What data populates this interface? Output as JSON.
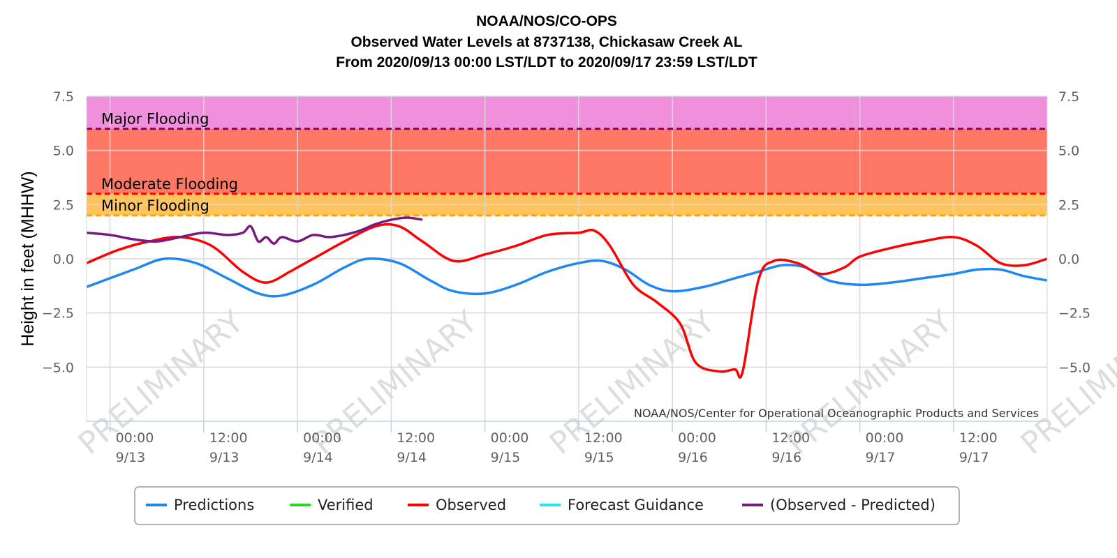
{
  "colors": {
    "major_band": "#f090dc",
    "moderate_band": "#ff7866",
    "minor_band": "#ffc45c",
    "major_line": "#800080",
    "moderate_line": "#ff0000",
    "minor_line": "#ffa500",
    "predictions": "#1e88f0",
    "verified": "#22dd22",
    "observed": "#ff0000",
    "forecast_guidance": "#22e8f0",
    "observed_minus_predicted": "#7a1a80",
    "grid": "#d8d8d8",
    "axis": "#c0d0e0"
  },
  "chart_data": {
    "type": "line",
    "title": [
      "NOAA/NOS/CO-OPS",
      "Observed Water Levels at 8737138, Chickasaw Creek AL",
      "From 2020/09/13 00:00 LST/LDT to 2020/09/17 23:59 LST/LDT"
    ],
    "ylabel": "Height in feet (MHHW)",
    "ylim": [
      -7.5,
      7.5
    ],
    "y_ticks": [
      "7.5",
      "5.0",
      "2.5",
      "0.0",
      "−2.5",
      "−5.0"
    ],
    "y_tick_values": [
      7.5,
      5.0,
      2.5,
      0.0,
      -2.5,
      -5.0
    ],
    "xlim": [
      "2020-09-12 21:00",
      "2020-09-17 23:59"
    ],
    "x_ticks": [
      {
        "t": "2020-09-13 00:00",
        "time": "00:00",
        "date": "9/13"
      },
      {
        "t": "2020-09-13 12:00",
        "time": "12:00",
        "date": "9/13"
      },
      {
        "t": "2020-09-14 00:00",
        "time": "00:00",
        "date": "9/14"
      },
      {
        "t": "2020-09-14 12:00",
        "time": "12:00",
        "date": "9/14"
      },
      {
        "t": "2020-09-15 00:00",
        "time": "00:00",
        "date": "9/15"
      },
      {
        "t": "2020-09-15 12:00",
        "time": "12:00",
        "date": "9/15"
      },
      {
        "t": "2020-09-16 00:00",
        "time": "00:00",
        "date": "9/16"
      },
      {
        "t": "2020-09-16 12:00",
        "time": "12:00",
        "date": "9/16"
      },
      {
        "t": "2020-09-17 00:00",
        "time": "00:00",
        "date": "9/17"
      },
      {
        "t": "2020-09-17 12:00",
        "time": "12:00",
        "date": "9/17"
      }
    ],
    "grid": true,
    "legend_position": "bottom",
    "flood_levels": [
      {
        "label": "Major Flooding",
        "value": 6.0,
        "band": [
          6.0,
          7.5
        ]
      },
      {
        "label": "Moderate Flooding",
        "value": 3.0,
        "band": [
          3.0,
          6.0
        ]
      },
      {
        "label": "Minor Flooding",
        "value": 2.0,
        "band": [
          2.0,
          3.0
        ]
      }
    ],
    "series": [
      {
        "name": "Predictions",
        "x": [
          "2020-09-12 21:00",
          "2020-09-13 03:00",
          "2020-09-13 07:00",
          "2020-09-13 11:00",
          "2020-09-13 15:00",
          "2020-09-13 19:00",
          "2020-09-13 22:00",
          "2020-09-14 02:00",
          "2020-09-14 06:00",
          "2020-09-14 09:00",
          "2020-09-14 13:00",
          "2020-09-14 17:00",
          "2020-09-14 20:00",
          "2020-09-15 00:00",
          "2020-09-15 04:00",
          "2020-09-15 08:00",
          "2020-09-15 12:00",
          "2020-09-15 15:00",
          "2020-09-15 18:00",
          "2020-09-15 21:00",
          "2020-09-16 00:00",
          "2020-09-16 04:00",
          "2020-09-16 08:00",
          "2020-09-16 11:00",
          "2020-09-16 14:00",
          "2020-09-16 17:00",
          "2020-09-16 20:00",
          "2020-09-17 00:00",
          "2020-09-17 04:00",
          "2020-09-17 08:00",
          "2020-09-17 12:00",
          "2020-09-17 15:00",
          "2020-09-17 18:00",
          "2020-09-17 21:00",
          "2020-09-17 23:59"
        ],
        "y": [
          -1.3,
          -0.5,
          0.0,
          -0.2,
          -0.9,
          -1.6,
          -1.7,
          -1.2,
          -0.4,
          0.0,
          -0.2,
          -1.0,
          -1.5,
          -1.6,
          -1.2,
          -0.6,
          -0.2,
          -0.1,
          -0.5,
          -1.2,
          -1.5,
          -1.3,
          -0.9,
          -0.6,
          -0.3,
          -0.4,
          -1.0,
          -1.2,
          -1.1,
          -0.9,
          -0.7,
          -0.5,
          -0.5,
          -0.8,
          -1.0
        ]
      },
      {
        "name": "Verified",
        "x": [],
        "y": []
      },
      {
        "name": "Observed",
        "x": [
          "2020-09-12 21:00",
          "2020-09-13 01:00",
          "2020-09-13 05:00",
          "2020-09-13 09:00",
          "2020-09-13 13:00",
          "2020-09-13 17:00",
          "2020-09-13 20:00",
          "2020-09-13 23:00",
          "2020-09-14 00:00",
          "2020-09-14 03:00",
          "2020-09-14 06:00",
          "2020-09-14 10:00",
          "2020-09-14 13:00",
          "2020-09-14 16:00",
          "2020-09-14 20:00",
          "2020-09-15 00:00",
          "2020-09-15 04:00",
          "2020-09-15 08:00",
          "2020-09-15 12:00",
          "2020-09-15 14:00",
          "2020-09-15 16:00",
          "2020-09-15 19:00",
          "2020-09-15 22:00",
          "2020-09-16 01:00",
          "2020-09-16 03:00",
          "2020-09-16 06:00",
          "2020-09-16 08:00",
          "2020-09-16 09:00",
          "2020-09-16 11:00",
          "2020-09-16 13:00",
          "2020-09-16 16:00",
          "2020-09-16 19:00",
          "2020-09-16 22:00",
          "2020-09-17 00:00",
          "2020-09-17 04:00",
          "2020-09-17 08:00",
          "2020-09-17 12:00",
          "2020-09-17 15:00",
          "2020-09-17 18:00",
          "2020-09-17 21:00",
          "2020-09-17 23:59"
        ],
        "y": [
          -0.2,
          0.4,
          0.8,
          1.0,
          0.6,
          -0.6,
          -1.1,
          -0.6,
          -0.4,
          0.2,
          0.8,
          1.5,
          1.5,
          0.8,
          -0.1,
          0.2,
          0.6,
          1.1,
          1.2,
          1.3,
          0.6,
          -1.2,
          -2.0,
          -3.0,
          -4.8,
          -5.2,
          -5.1,
          -5.2,
          -1.0,
          -0.1,
          -0.2,
          -0.7,
          -0.4,
          0.1,
          0.5,
          0.8,
          1.0,
          0.6,
          -0.2,
          -0.3,
          0.0
        ]
      },
      {
        "name": "Forecast Guidance",
        "x": [],
        "y": []
      },
      {
        "name": "(Observed - Predicted)",
        "x": [
          "2020-09-12 21:00",
          "2020-09-13 00:00",
          "2020-09-13 03:00",
          "2020-09-13 06:00",
          "2020-09-13 09:00",
          "2020-09-13 12:00",
          "2020-09-13 15:00",
          "2020-09-13 17:00",
          "2020-09-13 18:00",
          "2020-09-13 19:00",
          "2020-09-13 20:00",
          "2020-09-13 21:00",
          "2020-09-13 22:00",
          "2020-09-14 00:00",
          "2020-09-14 02:00",
          "2020-09-14 04:00",
          "2020-09-14 06:00",
          "2020-09-14 08:00",
          "2020-09-14 10:00",
          "2020-09-14 12:00",
          "2020-09-14 14:00",
          "2020-09-14 16:00"
        ],
        "y": [
          1.2,
          1.1,
          0.9,
          0.8,
          1.0,
          1.2,
          1.1,
          1.2,
          1.5,
          0.8,
          1.0,
          0.7,
          1.0,
          0.8,
          1.1,
          1.0,
          1.1,
          1.3,
          1.6,
          1.8,
          1.9,
          1.8
        ]
      }
    ],
    "watermark": "PRELIMINARY",
    "credit": "NOAA/NOS/Center for Operational Oceanographic Products and Services"
  }
}
